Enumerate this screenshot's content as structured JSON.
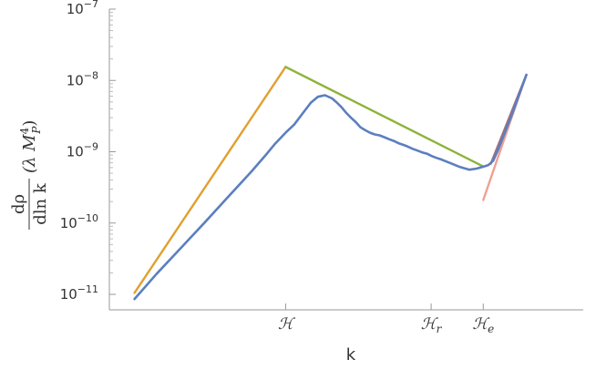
{
  "chart_data": {
    "type": "line",
    "xlabel": "k",
    "ylabel": {
      "num": "dρ",
      "den": "dln k",
      "unit_open": "(λ M",
      "unit_sub": "P",
      "unit_sup": "4",
      "unit_close": ")"
    },
    "yscale": "log",
    "ylim": [
      8e-12,
      1e-07
    ],
    "xlim": [
      0,
      1
    ],
    "y_ticks": [
      {
        "base": "10",
        "exp": "−11",
        "value": 1e-11
      },
      {
        "base": "10",
        "exp": "−10",
        "value": 1e-10
      },
      {
        "base": "10",
        "exp": "−9",
        "value": 1e-09
      },
      {
        "base": "10",
        "exp": "−8",
        "value": 1e-08
      },
      {
        "base": "10",
        "exp": "−7",
        "value": 1e-07
      }
    ],
    "x_ticks": [
      {
        "label": "ℋ",
        "sub": "",
        "x": 0.372
      },
      {
        "label": "ℋ",
        "sub": "r",
        "x": 0.679
      },
      {
        "label": "ℋ",
        "sub": "e",
        "x": 0.789
      }
    ],
    "grid": false,
    "legend": "none",
    "series": [
      {
        "color": "#5b7fbf",
        "x": [
          0.053,
          0.1,
          0.15,
          0.2,
          0.25,
          0.3,
          0.33,
          0.35,
          0.372,
          0.39,
          0.41,
          0.425,
          0.44,
          0.455,
          0.47,
          0.48,
          0.49,
          0.5,
          0.51,
          0.52,
          0.53,
          0.54,
          0.55,
          0.56,
          0.57,
          0.58,
          0.59,
          0.6,
          0.61,
          0.62,
          0.63,
          0.64,
          0.65,
          0.66,
          0.67,
          0.68,
          0.69,
          0.7,
          0.72,
          0.74,
          0.76,
          0.775,
          0.79,
          0.8,
          0.81,
          0.82,
          0.83,
          0.85,
          0.88
        ],
        "y": [
          8.6e-12,
          1.95e-11,
          4.4e-11,
          1e-10,
          2.3e-10,
          5.3e-10,
          9e-10,
          1.3e-09,
          1.85e-09,
          2.4e-09,
          3.6e-09,
          4.85e-09,
          5.9e-09,
          6.2e-09,
          5.6e-09,
          4.9e-09,
          4.2e-09,
          3.5e-09,
          3e-09,
          2.6e-09,
          2.2e-09,
          2e-09,
          1.85e-09,
          1.75e-09,
          1.7e-09,
          1.6e-09,
          1.5e-09,
          1.42e-09,
          1.32e-09,
          1.25e-09,
          1.18e-09,
          1.1e-09,
          1.04e-09,
          9.8e-10,
          9.4e-10,
          8.7e-10,
          8.2e-10,
          7.8e-10,
          6.9e-10,
          6.1e-10,
          5.6e-10,
          5.8e-10,
          6.2e-10,
          6.5e-10,
          7.5e-10,
          1.05e-09,
          1.55e-09,
          3.4e-09,
          1.2e-08
        ]
      },
      {
        "color": "#e0a030",
        "x": [
          0.053,
          0.372
        ],
        "y": [
          1.05e-11,
          1.55e-08
        ]
      },
      {
        "color": "#8db33a",
        "x": [
          0.372,
          0.789
        ],
        "y": [
          1.55e-08,
          6.2e-10
        ]
      },
      {
        "color": "#f0a090",
        "x": [
          0.789,
          0.88
        ],
        "y": [
          2.1e-10,
          1.2e-08
        ]
      },
      {
        "color": "#a07080",
        "x": [
          0.805,
          0.88
        ],
        "y": [
          6.8e-10,
          1.2e-08
        ]
      }
    ]
  }
}
